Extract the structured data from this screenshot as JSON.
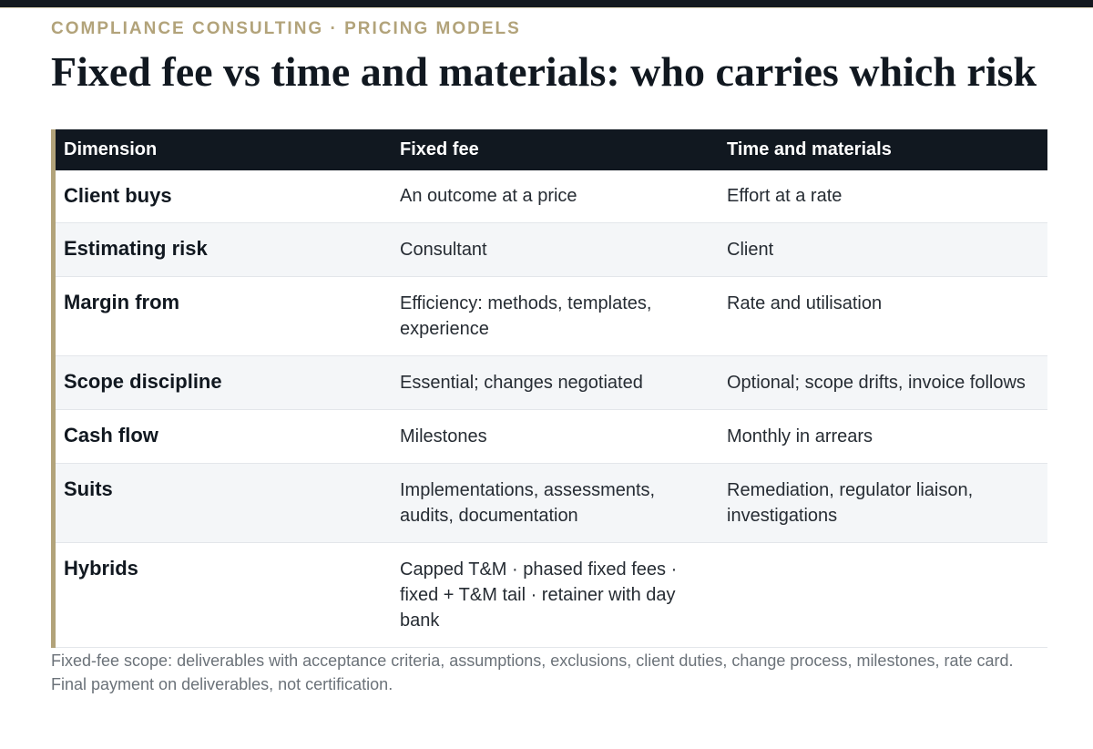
{
  "header": {
    "kicker": "COMPLIANCE CONSULTING · PRICING MODELS",
    "title": "Fixed fee vs time and materials: who carries which risk"
  },
  "table": {
    "columns": [
      "Dimension",
      "Fixed fee",
      "Time and materials"
    ],
    "rows": [
      {
        "dimension": "Client buys",
        "fixed_fee": "An outcome at a price",
        "time_and_materials": "Effort at a rate"
      },
      {
        "dimension": "Estimating risk",
        "fixed_fee": "Consultant",
        "time_and_materials": "Client"
      },
      {
        "dimension": "Margin from",
        "fixed_fee": "Efficiency: methods, templates, experience",
        "time_and_materials": "Rate and utilisation"
      },
      {
        "dimension": "Scope discipline",
        "fixed_fee": "Essential; changes negotiated",
        "time_and_materials": "Optional; scope drifts, invoice follows"
      },
      {
        "dimension": "Cash flow",
        "fixed_fee": "Milestones",
        "time_and_materials": "Monthly in arrears"
      },
      {
        "dimension": "Suits",
        "fixed_fee": "Implementations, assessments, audits, documentation",
        "time_and_materials": "Remediation, regulator liaison, investigations"
      },
      {
        "dimension": "Hybrids",
        "fixed_fee": "Capped T&M · phased fixed fees · fixed + T&M tail · retainer with day bank",
        "time_and_materials": ""
      }
    ]
  },
  "footnote": "Fixed-fee scope: deliverables with acceptance criteria, assumptions, exclusions, client duties, change process, milestones, rate card. Final payment on deliverables, not certification.",
  "colors": {
    "accent": "#b2a37a",
    "header_bg": "#111820",
    "zebra": "#f4f6f8"
  }
}
